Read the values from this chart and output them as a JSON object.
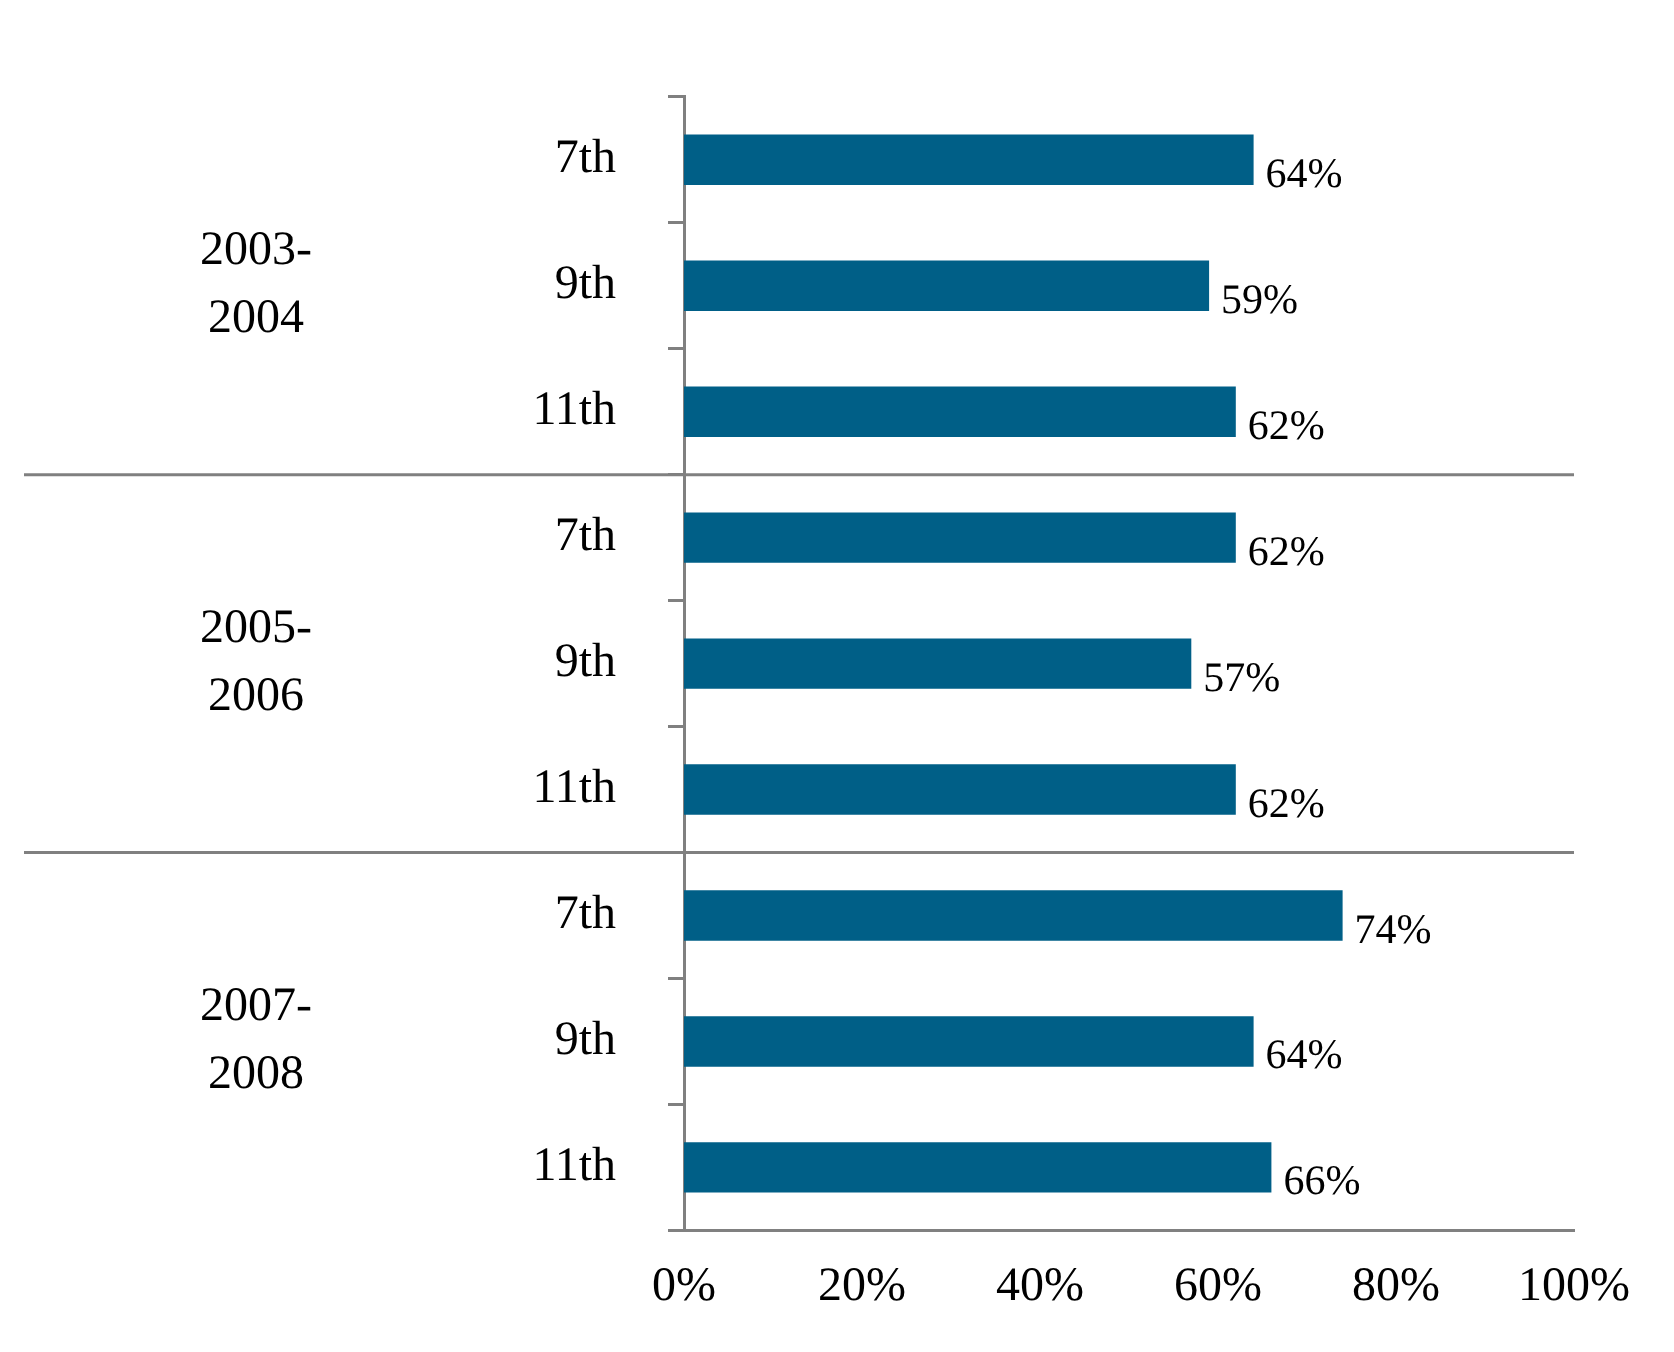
{
  "chart_data": {
    "type": "bar",
    "orientation": "horizontal",
    "categories": [
      "7th",
      "9th",
      "11th",
      "7th",
      "9th",
      "11th",
      "7th",
      "9th",
      "11th"
    ],
    "values": [
      64,
      59,
      62,
      62,
      57,
      62,
      74,
      64,
      66
    ],
    "color": "#005f87",
    "xlim": [
      0,
      100
    ],
    "xticks": [
      {
        "value": 0,
        "label": "0%"
      },
      {
        "value": 20,
        "label": "20%"
      },
      {
        "value": 40,
        "label": "40%"
      },
      {
        "value": 60,
        "label": "60%"
      },
      {
        "value": 80,
        "label": "80%"
      },
      {
        "value": 100,
        "label": "100%"
      }
    ],
    "annotations": [
      "2003-2004",
      "2005-2006",
      "2007-2008"
    ],
    "value_labels": [
      "64%",
      "59%",
      "62%",
      "62%",
      "57%",
      "62%",
      "74%",
      "64%",
      "66%"
    ],
    "grid": false,
    "legend": false
  }
}
